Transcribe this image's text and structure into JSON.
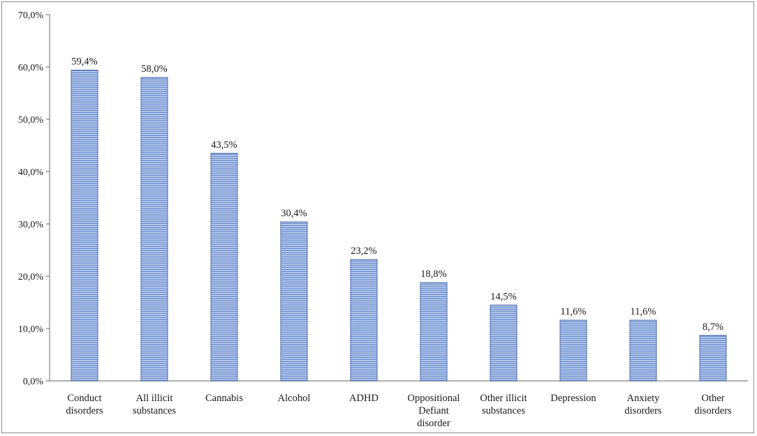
{
  "chart_data": {
    "type": "bar",
    "title": "",
    "xlabel": "",
    "ylabel": "",
    "ylim": [
      0,
      70
    ],
    "yticks": [
      {
        "value": 0,
        "label": "0,0%"
      },
      {
        "value": 10,
        "label": "10,0%"
      },
      {
        "value": 20,
        "label": "20,0%"
      },
      {
        "value": 30,
        "label": "30,0%"
      },
      {
        "value": 40,
        "label": "40,0%"
      },
      {
        "value": 50,
        "label": "50,0%"
      },
      {
        "value": 60,
        "label": "60,0%"
      },
      {
        "value": 70,
        "label": "70,0%"
      }
    ],
    "categories": [
      [
        "Conduct",
        "disorders"
      ],
      [
        "All illicit",
        "substances"
      ],
      [
        "Cannabis"
      ],
      [
        "Alcohol"
      ],
      [
        "ADHD"
      ],
      [
        "Oppositional",
        "Defiant",
        "disorder"
      ],
      [
        "Other illicit",
        "substances"
      ],
      [
        "Depression"
      ],
      [
        "Anxiety",
        "disorders"
      ],
      [
        "Other",
        "disorders"
      ]
    ],
    "values": [
      59.4,
      58.0,
      43.5,
      30.4,
      23.2,
      18.8,
      14.5,
      11.6,
      11.6,
      8.7
    ],
    "data_labels": [
      "59,4%",
      "58,0%",
      "43,5%",
      "30,4%",
      "23,2%",
      "18,8%",
      "14,5%",
      "11,6%",
      "11,6%",
      "8,7%"
    ],
    "bar_color": "#6f8fd0",
    "bar_stripe_color": "#c7d5f0",
    "bar_edge_color": "#4a6aa8",
    "grid": false,
    "legend": "none"
  }
}
